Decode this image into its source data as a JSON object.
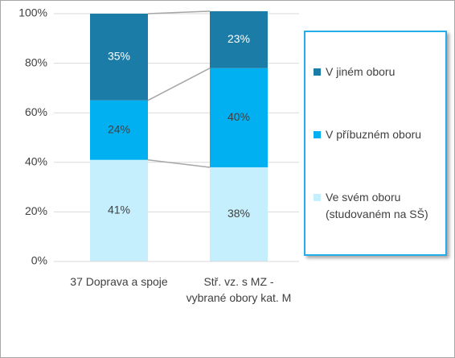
{
  "chart_data": {
    "type": "stacked_bar",
    "categories": [
      "37 Doprava a spoje",
      "Stř. vz. s MZ - vybrané obory kat. M"
    ],
    "series": [
      {
        "name": "Ve svém oboru (studovaném na SŠ)",
        "color": "#c5effc",
        "values": [
          41,
          38
        ],
        "value_labels": [
          "41%",
          "38%"
        ]
      },
      {
        "name": "V příbuzném oboru",
        "color": "#00b0f0",
        "values": [
          24,
          40
        ],
        "value_labels": [
          "24%",
          "40%"
        ]
      },
      {
        "name": "V jiném oboru",
        "color": "#1b7ca8",
        "values": [
          35,
          23
        ],
        "value_labels": [
          "35%",
          "23%"
        ]
      }
    ],
    "ylim": [
      0,
      100
    ],
    "yticks": [
      {
        "value": 0,
        "label": "0%"
      },
      {
        "value": 20,
        "label": "20%"
      },
      {
        "value": 40,
        "label": "40%"
      },
      {
        "value": 60,
        "label": "60%"
      },
      {
        "value": 80,
        "label": "80%"
      },
      {
        "value": 100,
        "label": "100%"
      }
    ],
    "grid": true,
    "series_lines": true,
    "legend": "right"
  }
}
